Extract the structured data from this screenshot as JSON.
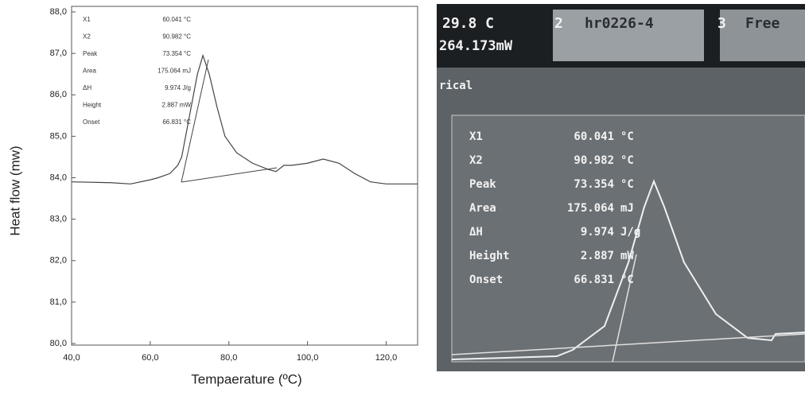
{
  "chart_data": {
    "type": "line",
    "xlabel": "Tempaerature (ºC)",
    "ylabel": "Heat flow (mw)",
    "x": [
      40,
      50,
      55,
      60,
      62,
      65,
      67,
      68,
      70,
      72,
      73.4,
      75,
      77,
      79,
      82,
      86,
      90,
      92,
      94,
      96,
      100,
      104,
      108,
      112,
      116,
      120,
      128
    ],
    "series": [
      {
        "color": "#444444",
        "values": [
          83.9,
          83.88,
          83.85,
          83.95,
          84.0,
          84.1,
          84.3,
          84.5,
          85.5,
          86.5,
          86.95,
          86.5,
          85.7,
          85.0,
          84.6,
          84.35,
          84.2,
          84.15,
          84.3,
          84.3,
          84.35,
          84.45,
          84.35,
          84.1,
          83.9,
          83.85,
          83.85
        ]
      }
    ],
    "xlim": [
      40,
      128
    ],
    "ylim": [
      80,
      88
    ],
    "xticks": [
      {
        "value": 40,
        "label": "40,0"
      },
      {
        "value": 60,
        "label": "60,0"
      },
      {
        "value": 80,
        "label": "80,0"
      },
      {
        "value": 100,
        "label": "100,0"
      },
      {
        "value": 120,
        "label": "120,0"
      }
    ],
    "yticks": [
      {
        "value": 80,
        "label": "80,0"
      },
      {
        "value": 81,
        "label": "81,0"
      },
      {
        "value": 82,
        "label": "82,0"
      },
      {
        "value": 83,
        "label": "83,0"
      },
      {
        "value": 84,
        "label": "84,0"
      },
      {
        "value": 85,
        "label": "85,0"
      },
      {
        "value": 86,
        "label": "86,0"
      },
      {
        "value": 87,
        "label": "87,0"
      },
      {
        "value": 88,
        "label": "88,0"
      }
    ],
    "annotations": [
      [
        "X1",
        "60.041 °C"
      ],
      [
        "X2",
        "90.982 °C"
      ],
      [
        "Peak",
        "73.354 °C"
      ],
      [
        "Area",
        "175.064 mJ"
      ],
      [
        "ΔH",
        "9.974 J/g"
      ],
      [
        "Height",
        "2.887 mW"
      ],
      [
        "Onset",
        "66.831 °C"
      ]
    ]
  },
  "photo": {
    "temp": "29.8 C",
    "power": "264.173mW",
    "slot2": "2",
    "sample": "hr0226-4",
    "slot3": "3",
    "mode": "Free",
    "section": "rical",
    "table": [
      [
        "X1",
        "60.041",
        "°C"
      ],
      [
        "X2",
        "90.982",
        "°C"
      ],
      [
        "Peak",
        "73.354",
        "°C"
      ],
      [
        "Area",
        "175.064",
        "mJ"
      ],
      [
        "ΔH",
        "9.974",
        "J/g"
      ],
      [
        "Height",
        "2.887",
        "mW"
      ],
      [
        "Onset",
        "66.831",
        "°C"
      ]
    ]
  }
}
